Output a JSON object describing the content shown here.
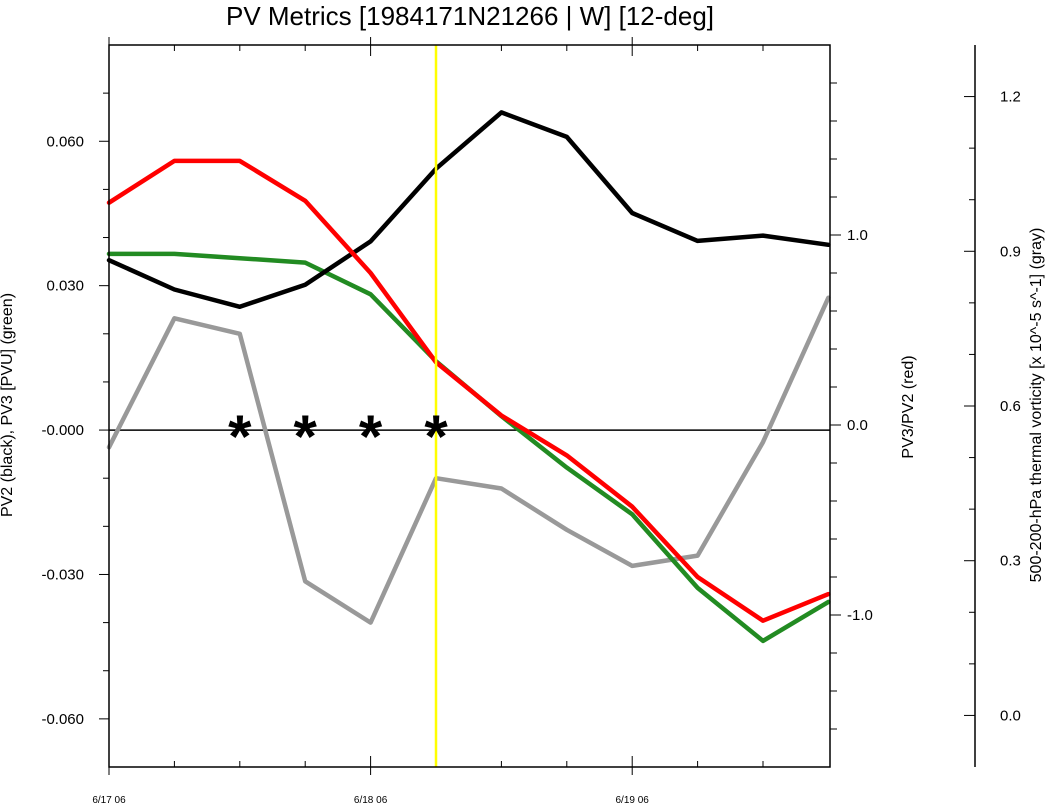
{
  "chart_data": {
    "type": "line",
    "title": "PV Metrics [1984171N21266 | W] [12-deg]",
    "x": {
      "tick_labels": [
        "6/17 06",
        "6/18 06",
        "6/19 06"
      ],
      "tick_index": [
        0,
        4,
        8
      ],
      "n_points": 12,
      "minor_tick_count": 11
    },
    "y_left": {
      "label": "PV2 (black), PV3 [PVU] (green)",
      "range": [
        -0.07,
        0.08
      ],
      "ticks": [
        0.06,
        0.03,
        0.0,
        -0.03,
        -0.06
      ],
      "tick_labels": [
        "0.060",
        "0.030",
        "-0.000",
        "-0.030",
        "-0.060"
      ],
      "minor_step": 0.01
    },
    "y_mid": {
      "label": "PV3/PV2 (red)",
      "range": [
        -1.8,
        2.0
      ],
      "ticks": [
        1.0,
        0.0,
        -1.0
      ],
      "tick_labels": [
        "1.0",
        "0.0",
        "-1.0"
      ],
      "minor_step": 0.2
    },
    "y_right": {
      "label": "500-200-hPa thermal vorticity [x 10^-5 s^-1] (gray)",
      "range": [
        -0.1,
        1.3
      ],
      "ticks": [
        1.2,
        0.9,
        0.6,
        0.3,
        0.0
      ],
      "tick_labels": [
        "1.2",
        "0.9",
        "0.6",
        "0.3",
        "0.0"
      ],
      "minor_step": 0.1
    },
    "series": [
      {
        "name": "PV2",
        "axis": "left",
        "color": "#000000",
        "values": [
          0.0353,
          0.0292,
          0.0256,
          0.0302,
          0.0392,
          0.0543,
          0.066,
          0.0609,
          0.0451,
          0.0393,
          0.0404,
          0.0385
        ]
      },
      {
        "name": "PV3",
        "axis": "left",
        "color": "#228b22",
        "values": [
          0.0366,
          0.0366,
          0.0357,
          0.0348,
          0.0282,
          0.0143,
          0.0029,
          -0.0078,
          -0.0175,
          -0.0328,
          -0.0438,
          -0.0357
        ]
      },
      {
        "name": "PV3/PV2",
        "axis": "mid",
        "color": "#ff0000",
        "values": [
          1.17,
          1.39,
          1.39,
          1.18,
          0.8,
          0.33,
          0.05,
          -0.16,
          -0.43,
          -0.8,
          -1.03,
          -0.89
        ]
      },
      {
        "name": "Thermal vorticity",
        "axis": "right",
        "color": "#999999",
        "values": [
          0.52,
          0.77,
          0.74,
          0.26,
          0.18,
          0.46,
          0.44,
          0.36,
          0.29,
          0.31,
          0.53,
          0.81
        ]
      }
    ],
    "zero_line": {
      "axis": "left",
      "value": 0.0
    },
    "markers": {
      "symbol": "*",
      "x_index": [
        2,
        3,
        4,
        5
      ],
      "y_value": 0.0,
      "axis": "left"
    },
    "vertical_line": {
      "x_index": 5,
      "color": "#ffff00"
    }
  }
}
